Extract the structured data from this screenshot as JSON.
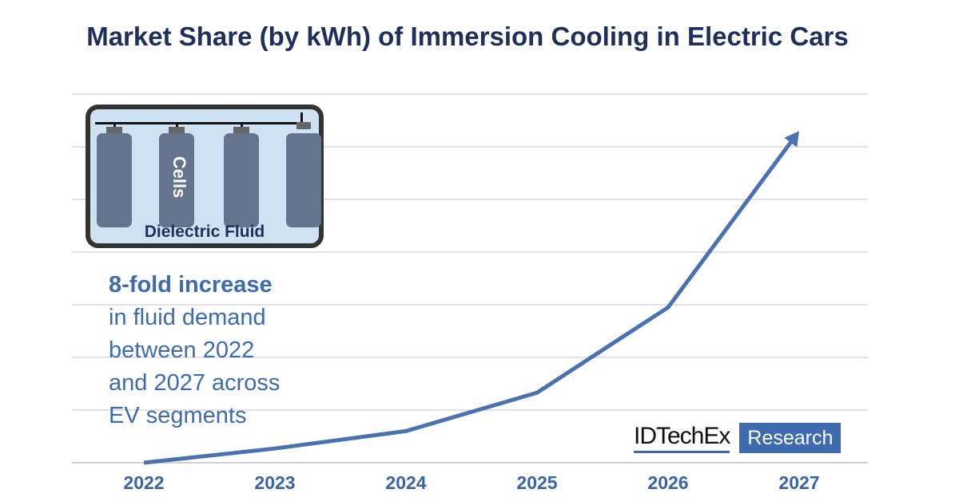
{
  "chart_data": {
    "type": "line",
    "title": "Market Share (by kWh) of Immersion Cooling in Electric Cars",
    "categories": [
      "2022",
      "2023",
      "2024",
      "2025",
      "2026",
      "2027"
    ],
    "values": [
      0,
      0.27,
      0.6,
      1.33,
      2.95,
      6.3
    ],
    "ylim": [
      0,
      7
    ],
    "grid": true,
    "y_tick_labels_shown": false,
    "line_color": "#4a72b0",
    "end_marker": "arrow",
    "xlabel": "",
    "ylabel": ""
  },
  "inset": {
    "cells_label": "Cells",
    "fluid_label": "Dielectric Fluid"
  },
  "callout": {
    "headline": "8-fold increase",
    "lines": [
      "in fluid demand",
      "between 2022",
      "and 2027 across",
      "EV segments"
    ]
  },
  "logo": {
    "name": "IDTechEx",
    "tag": "Research"
  },
  "colors": {
    "title": "#1f2f5c",
    "accent": "#3e6bb0",
    "inset_fill": "#cfe2f3",
    "cell": "#65748e"
  }
}
